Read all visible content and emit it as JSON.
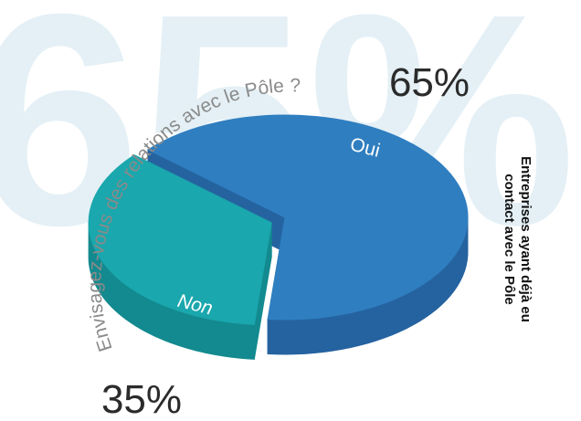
{
  "chart_data": {
    "type": "pie",
    "title": "Envisagez-vous des relations avec le Pôle ?",
    "side_label": [
      "Entreprises ayant déjà eu",
      "contact avec le Pôle"
    ],
    "categories": [
      "Oui",
      "Non"
    ],
    "values": [
      65,
      35
    ],
    "value_labels": [
      "65%",
      "35%"
    ],
    "colors": [
      "#2f7ec0",
      "#1aa7ad"
    ],
    "side_colors": [
      "#2563a0",
      "#128a8f"
    ],
    "exploded": [
      false,
      true
    ]
  }
}
